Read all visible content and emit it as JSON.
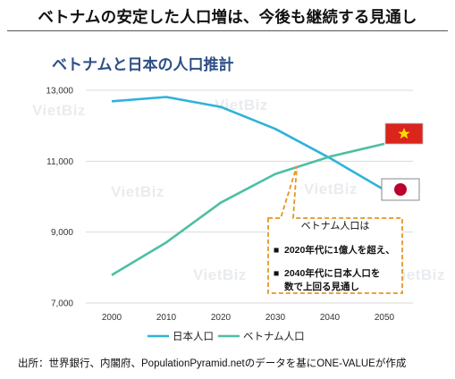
{
  "headline": "ベトナムの安定した人口増は、今後も継続する見通し",
  "watermark_text": "VietBiz",
  "source": "出所：世界銀行、内閣府、PopulationPyramid.netのデータを基にONE-VALUEが作成",
  "annotation": {
    "title": "ベトナム人口は",
    "bullet_mark": "■",
    "items": [
      "2020年代に1億人を超え、",
      "2040年代に日本人口を",
      "数で上回る見通し"
    ]
  },
  "chart_data": {
    "type": "line",
    "title": "ベトナムと日本の人口推計",
    "categories": [
      2000,
      2010,
      2020,
      2030,
      2040,
      2050
    ],
    "x_tick_labels": [
      "2000",
      "2010",
      "2020",
      "2030",
      "2040",
      "2050"
    ],
    "y_tick_values": [
      7000,
      9000,
      11000,
      13000
    ],
    "y_tick_labels": [
      "7,000",
      "9,000",
      "11,000",
      "13,000"
    ],
    "ylim": [
      7000,
      13000
    ],
    "grid": true,
    "legend_position": "bottom",
    "series": [
      {
        "name": "日本人口",
        "color": "#2fb2da",
        "flag": "japan-flag",
        "values": [
          12690,
          12810,
          12530,
          11910,
          11090,
          10190
        ]
      },
      {
        "name": "ベトナム人口",
        "color": "#4dbfa3",
        "flag": "vietnam-flag",
        "values": [
          7790,
          8710,
          9830,
          10640,
          11130,
          11490
        ]
      }
    ]
  }
}
